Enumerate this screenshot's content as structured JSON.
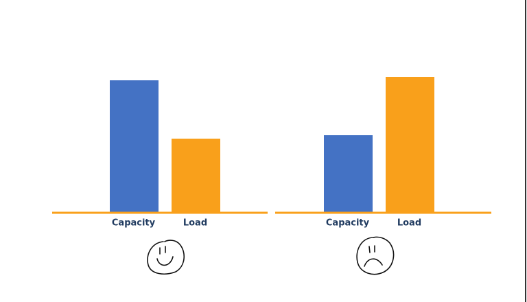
{
  "chart_data": [
    {
      "type": "bar",
      "categories": [
        "Capacity",
        "Load"
      ],
      "values": [
        192,
        107
      ],
      "colors": [
        "#4472c4",
        "#f9a01b"
      ],
      "ylim": [
        0,
        200
      ]
    },
    {
      "type": "bar",
      "categories": [
        "Capacity",
        "Load"
      ],
      "values": [
        112,
        197
      ],
      "colors": [
        "#4472c4",
        "#f9a01b"
      ],
      "ylim": [
        0,
        200
      ]
    }
  ]
}
